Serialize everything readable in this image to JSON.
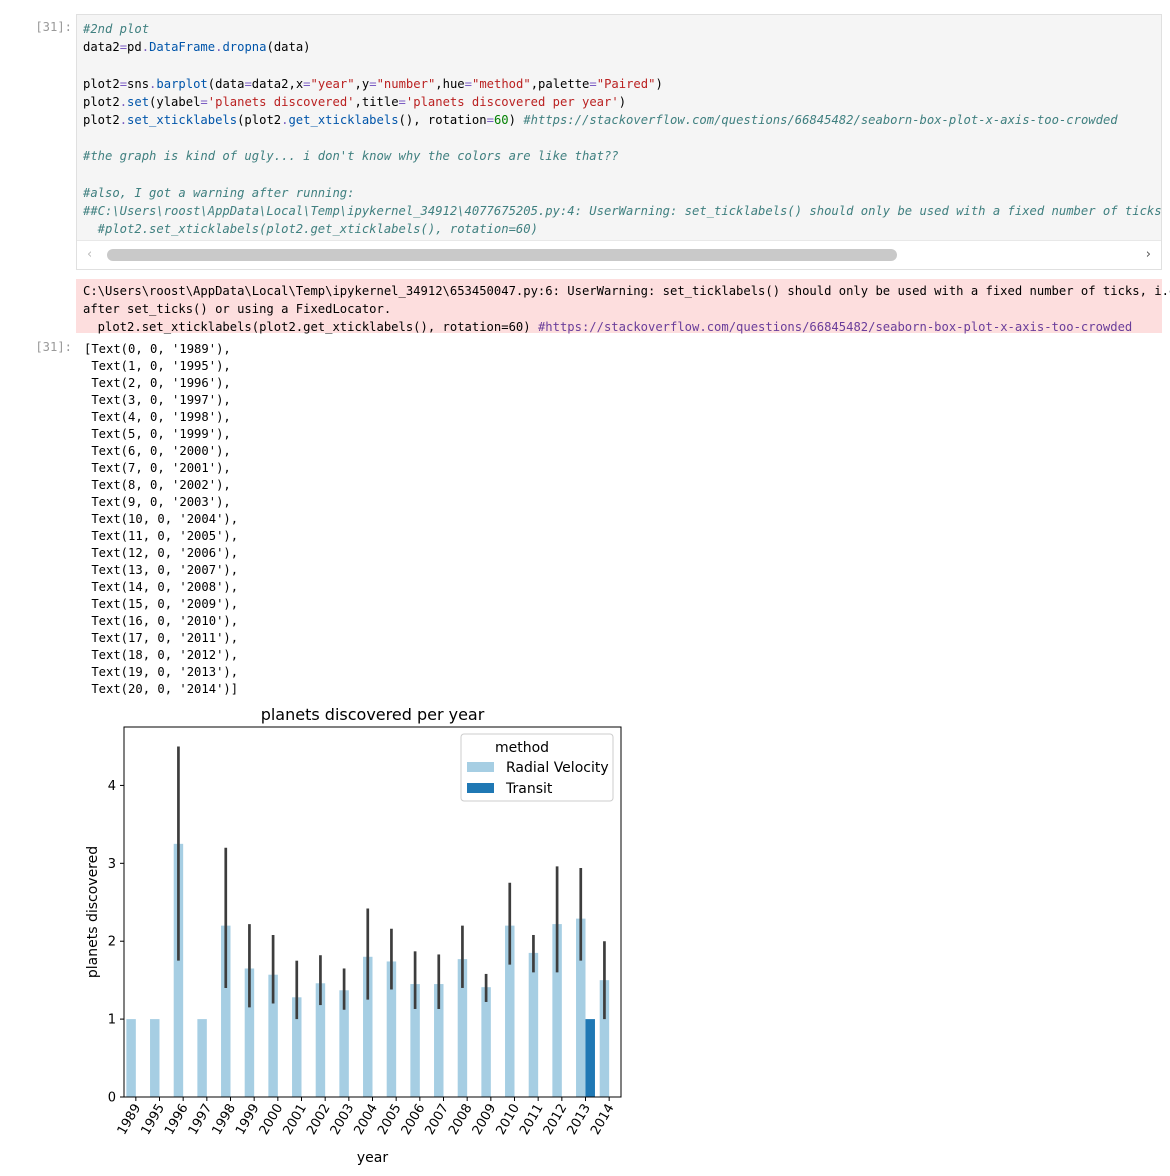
{
  "cell": {
    "prompt_in": "[31]:",
    "prompt_out": "[31]:",
    "code_lines": [
      [
        {
          "t": "#2nd plot",
          "c": "cm"
        }
      ],
      [
        {
          "t": "data2",
          "c": "kw"
        },
        {
          "t": "=",
          "c": "op"
        },
        {
          "t": "pd",
          "c": "kw"
        },
        {
          "t": ".",
          "c": "op"
        },
        {
          "t": "DataFrame",
          "c": "fn"
        },
        {
          "t": ".",
          "c": "op"
        },
        {
          "t": "dropna",
          "c": "fn"
        },
        {
          "t": "(data)",
          "c": "kw"
        }
      ],
      [
        {
          "t": "",
          "c": "kw"
        }
      ],
      [
        {
          "t": "plot2",
          "c": "kw"
        },
        {
          "t": "=",
          "c": "op"
        },
        {
          "t": "sns",
          "c": "kw"
        },
        {
          "t": ".",
          "c": "op"
        },
        {
          "t": "barplot",
          "c": "fn"
        },
        {
          "t": "(data",
          "c": "kw"
        },
        {
          "t": "=",
          "c": "op"
        },
        {
          "t": "data2,x",
          "c": "kw"
        },
        {
          "t": "=",
          "c": "op"
        },
        {
          "t": "\"year\"",
          "c": "st"
        },
        {
          "t": ",y",
          "c": "kw"
        },
        {
          "t": "=",
          "c": "op"
        },
        {
          "t": "\"number\"",
          "c": "st"
        },
        {
          "t": ",hue",
          "c": "kw"
        },
        {
          "t": "=",
          "c": "op"
        },
        {
          "t": "\"method\"",
          "c": "st"
        },
        {
          "t": ",palette",
          "c": "kw"
        },
        {
          "t": "=",
          "c": "op"
        },
        {
          "t": "\"Paired\"",
          "c": "st"
        },
        {
          "t": ")",
          "c": "kw"
        }
      ],
      [
        {
          "t": "plot2",
          "c": "kw"
        },
        {
          "t": ".",
          "c": "op"
        },
        {
          "t": "set",
          "c": "fn"
        },
        {
          "t": "(ylabel",
          "c": "kw"
        },
        {
          "t": "=",
          "c": "op"
        },
        {
          "t": "'planets discovered'",
          "c": "st"
        },
        {
          "t": ",title",
          "c": "kw"
        },
        {
          "t": "=",
          "c": "op"
        },
        {
          "t": "'planets discovered per year'",
          "c": "st"
        },
        {
          "t": ")",
          "c": "kw"
        }
      ],
      [
        {
          "t": "plot2",
          "c": "kw"
        },
        {
          "t": ".",
          "c": "op"
        },
        {
          "t": "set_xticklabels",
          "c": "fn"
        },
        {
          "t": "(plot2",
          "c": "kw"
        },
        {
          "t": ".",
          "c": "op"
        },
        {
          "t": "get_xticklabels",
          "c": "fn"
        },
        {
          "t": "(), rotation",
          "c": "kw"
        },
        {
          "t": "=",
          "c": "op"
        },
        {
          "t": "60",
          "c": "nu"
        },
        {
          "t": ") ",
          "c": "kw"
        },
        {
          "t": "#https://stackoverflow.com/questions/66845482/seaborn-box-plot-x-axis-too-crowded",
          "c": "cm"
        }
      ],
      [
        {
          "t": "",
          "c": "kw"
        }
      ],
      [
        {
          "t": "#the graph is kind of ugly... i don't know why the colors are like that??",
          "c": "cm"
        }
      ],
      [
        {
          "t": "",
          "c": "kw"
        }
      ],
      [
        {
          "t": "#also, I got a warning after running:",
          "c": "cm"
        }
      ],
      [
        {
          "t": "##C:\\Users\\roost\\AppData\\Local\\Temp\\ipykernel_34912\\4077675205.py:4: UserWarning: set_ticklabels() should only be used with a fixed number of ticks, i.",
          "c": "cm"
        }
      ],
      [
        {
          "t": "  #plot2.set_xticklabels(plot2.get_xticklabels(), rotation=60)",
          "c": "cm"
        }
      ]
    ],
    "stderr": {
      "line1": "C:\\Users\\roost\\AppData\\Local\\Temp\\ipykernel_34912\\653450047.py:6: UserWarning: set_ticklabels() should only be used with a fixed number of ticks, i.e.",
      "line2": "after set_ticks() or using a FixedLocator.",
      "line3_code": "  plot2.set_xticklabels(plot2.get_xticklabels(), rotation=60) ",
      "line3_link": "#https://stackoverflow.com/questions/66845482/seaborn-box-plot-x-axis-too-crowded"
    },
    "output_lines": [
      "[Text(0, 0, '1989'),",
      " Text(1, 0, '1995'),",
      " Text(2, 0, '1996'),",
      " Text(3, 0, '1997'),",
      " Text(4, 0, '1998'),",
      " Text(5, 0, '1999'),",
      " Text(6, 0, '2000'),",
      " Text(7, 0, '2001'),",
      " Text(8, 0, '2002'),",
      " Text(9, 0, '2003'),",
      " Text(10, 0, '2004'),",
      " Text(11, 0, '2005'),",
      " Text(12, 0, '2006'),",
      " Text(13, 0, '2007'),",
      " Text(14, 0, '2008'),",
      " Text(15, 0, '2009'),",
      " Text(16, 0, '2010'),",
      " Text(17, 0, '2011'),",
      " Text(18, 0, '2012'),",
      " Text(19, 0, '2013'),",
      " Text(20, 0, '2014')]"
    ]
  },
  "chart_data": {
    "type": "bar",
    "title": "planets discovered per year",
    "xlabel": "year",
    "ylabel": "planets discovered",
    "ylim": [
      0,
      4.75
    ],
    "yticks": [
      0,
      1,
      2,
      3,
      4
    ],
    "legend": {
      "title": "method",
      "position": "top-right"
    },
    "categories": [
      "1989",
      "1995",
      "1996",
      "1997",
      "1998",
      "1999",
      "2000",
      "2001",
      "2002",
      "2003",
      "2004",
      "2005",
      "2006",
      "2007",
      "2008",
      "2009",
      "2010",
      "2011",
      "2012",
      "2013",
      "2014"
    ],
    "series": [
      {
        "name": "Radial Velocity",
        "color": "#a6cee3",
        "values": [
          1,
          1,
          3.25,
          1,
          2.2,
          1.65,
          1.57,
          1.28,
          1.46,
          1.37,
          1.8,
          1.74,
          1.45,
          1.45,
          1.77,
          1.41,
          2.2,
          1.85,
          2.22,
          2.29,
          1.5
        ],
        "err_low": [
          null,
          null,
          1.75,
          null,
          1.4,
          1.15,
          1.2,
          1.0,
          1.18,
          1.12,
          1.25,
          1.38,
          1.13,
          1.13,
          1.4,
          1.22,
          1.7,
          1.6,
          1.6,
          1.75,
          1.0
        ],
        "err_high": [
          null,
          null,
          4.5,
          null,
          3.2,
          2.22,
          2.08,
          1.75,
          1.82,
          1.65,
          2.42,
          2.16,
          1.87,
          1.83,
          2.2,
          1.58,
          2.75,
          2.08,
          2.96,
          2.94,
          2.0
        ]
      },
      {
        "name": "Transit",
        "color": "#1f78b4",
        "values": [
          null,
          null,
          null,
          null,
          null,
          null,
          null,
          null,
          null,
          null,
          null,
          null,
          null,
          null,
          null,
          null,
          null,
          null,
          null,
          1,
          null
        ],
        "err_low": [
          null,
          null,
          null,
          null,
          null,
          null,
          null,
          null,
          null,
          null,
          null,
          null,
          null,
          null,
          null,
          null,
          null,
          null,
          null,
          null,
          null
        ],
        "err_high": [
          null,
          null,
          null,
          null,
          null,
          null,
          null,
          null,
          null,
          null,
          null,
          null,
          null,
          null,
          null,
          null,
          null,
          null,
          null,
          null,
          null
        ]
      }
    ]
  }
}
